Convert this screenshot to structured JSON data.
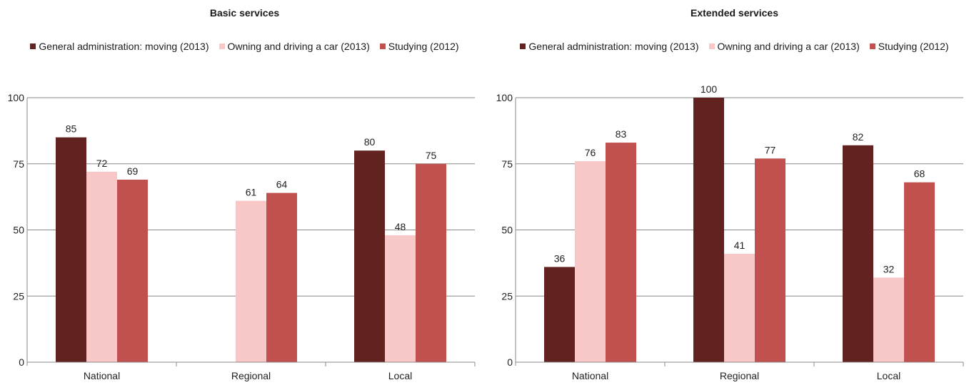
{
  "chart_data": [
    {
      "type": "bar",
      "title": "Basic services",
      "categories": [
        "National",
        "Regional",
        "Local"
      ],
      "series": [
        {
          "name": "General administration: moving (2013)",
          "color": "#62221f",
          "values": [
            85,
            null,
            80
          ]
        },
        {
          "name": "Owning and driving a car (2013)",
          "color": "#f8c8c8",
          "values": [
            72,
            61,
            48
          ]
        },
        {
          "name": "Studying (2012)",
          "color": "#c1514e",
          "values": [
            69,
            64,
            75
          ]
        }
      ],
      "ylim": [
        0,
        100
      ],
      "yticks": [
        "0",
        "25",
        "50",
        "75",
        "100"
      ],
      "xlabel": "",
      "ylabel": "",
      "grid": true,
      "legend": "top"
    },
    {
      "type": "bar",
      "title": "Extended services",
      "categories": [
        "National",
        "Regional",
        "Local"
      ],
      "series": [
        {
          "name": "General administration: moving (2013)",
          "color": "#62221f",
          "values": [
            36,
            100,
            82
          ]
        },
        {
          "name": "Owning and driving a car (2013)",
          "color": "#f8c8c8",
          "values": [
            76,
            41,
            32
          ]
        },
        {
          "name": "Studying (2012)",
          "color": "#c1514e",
          "values": [
            83,
            77,
            68
          ]
        }
      ],
      "ylim": [
        0,
        100
      ],
      "yticks": [
        "0",
        "25",
        "50",
        "75",
        "100"
      ],
      "xlabel": "",
      "ylabel": "",
      "grid": true,
      "legend": "top"
    }
  ]
}
